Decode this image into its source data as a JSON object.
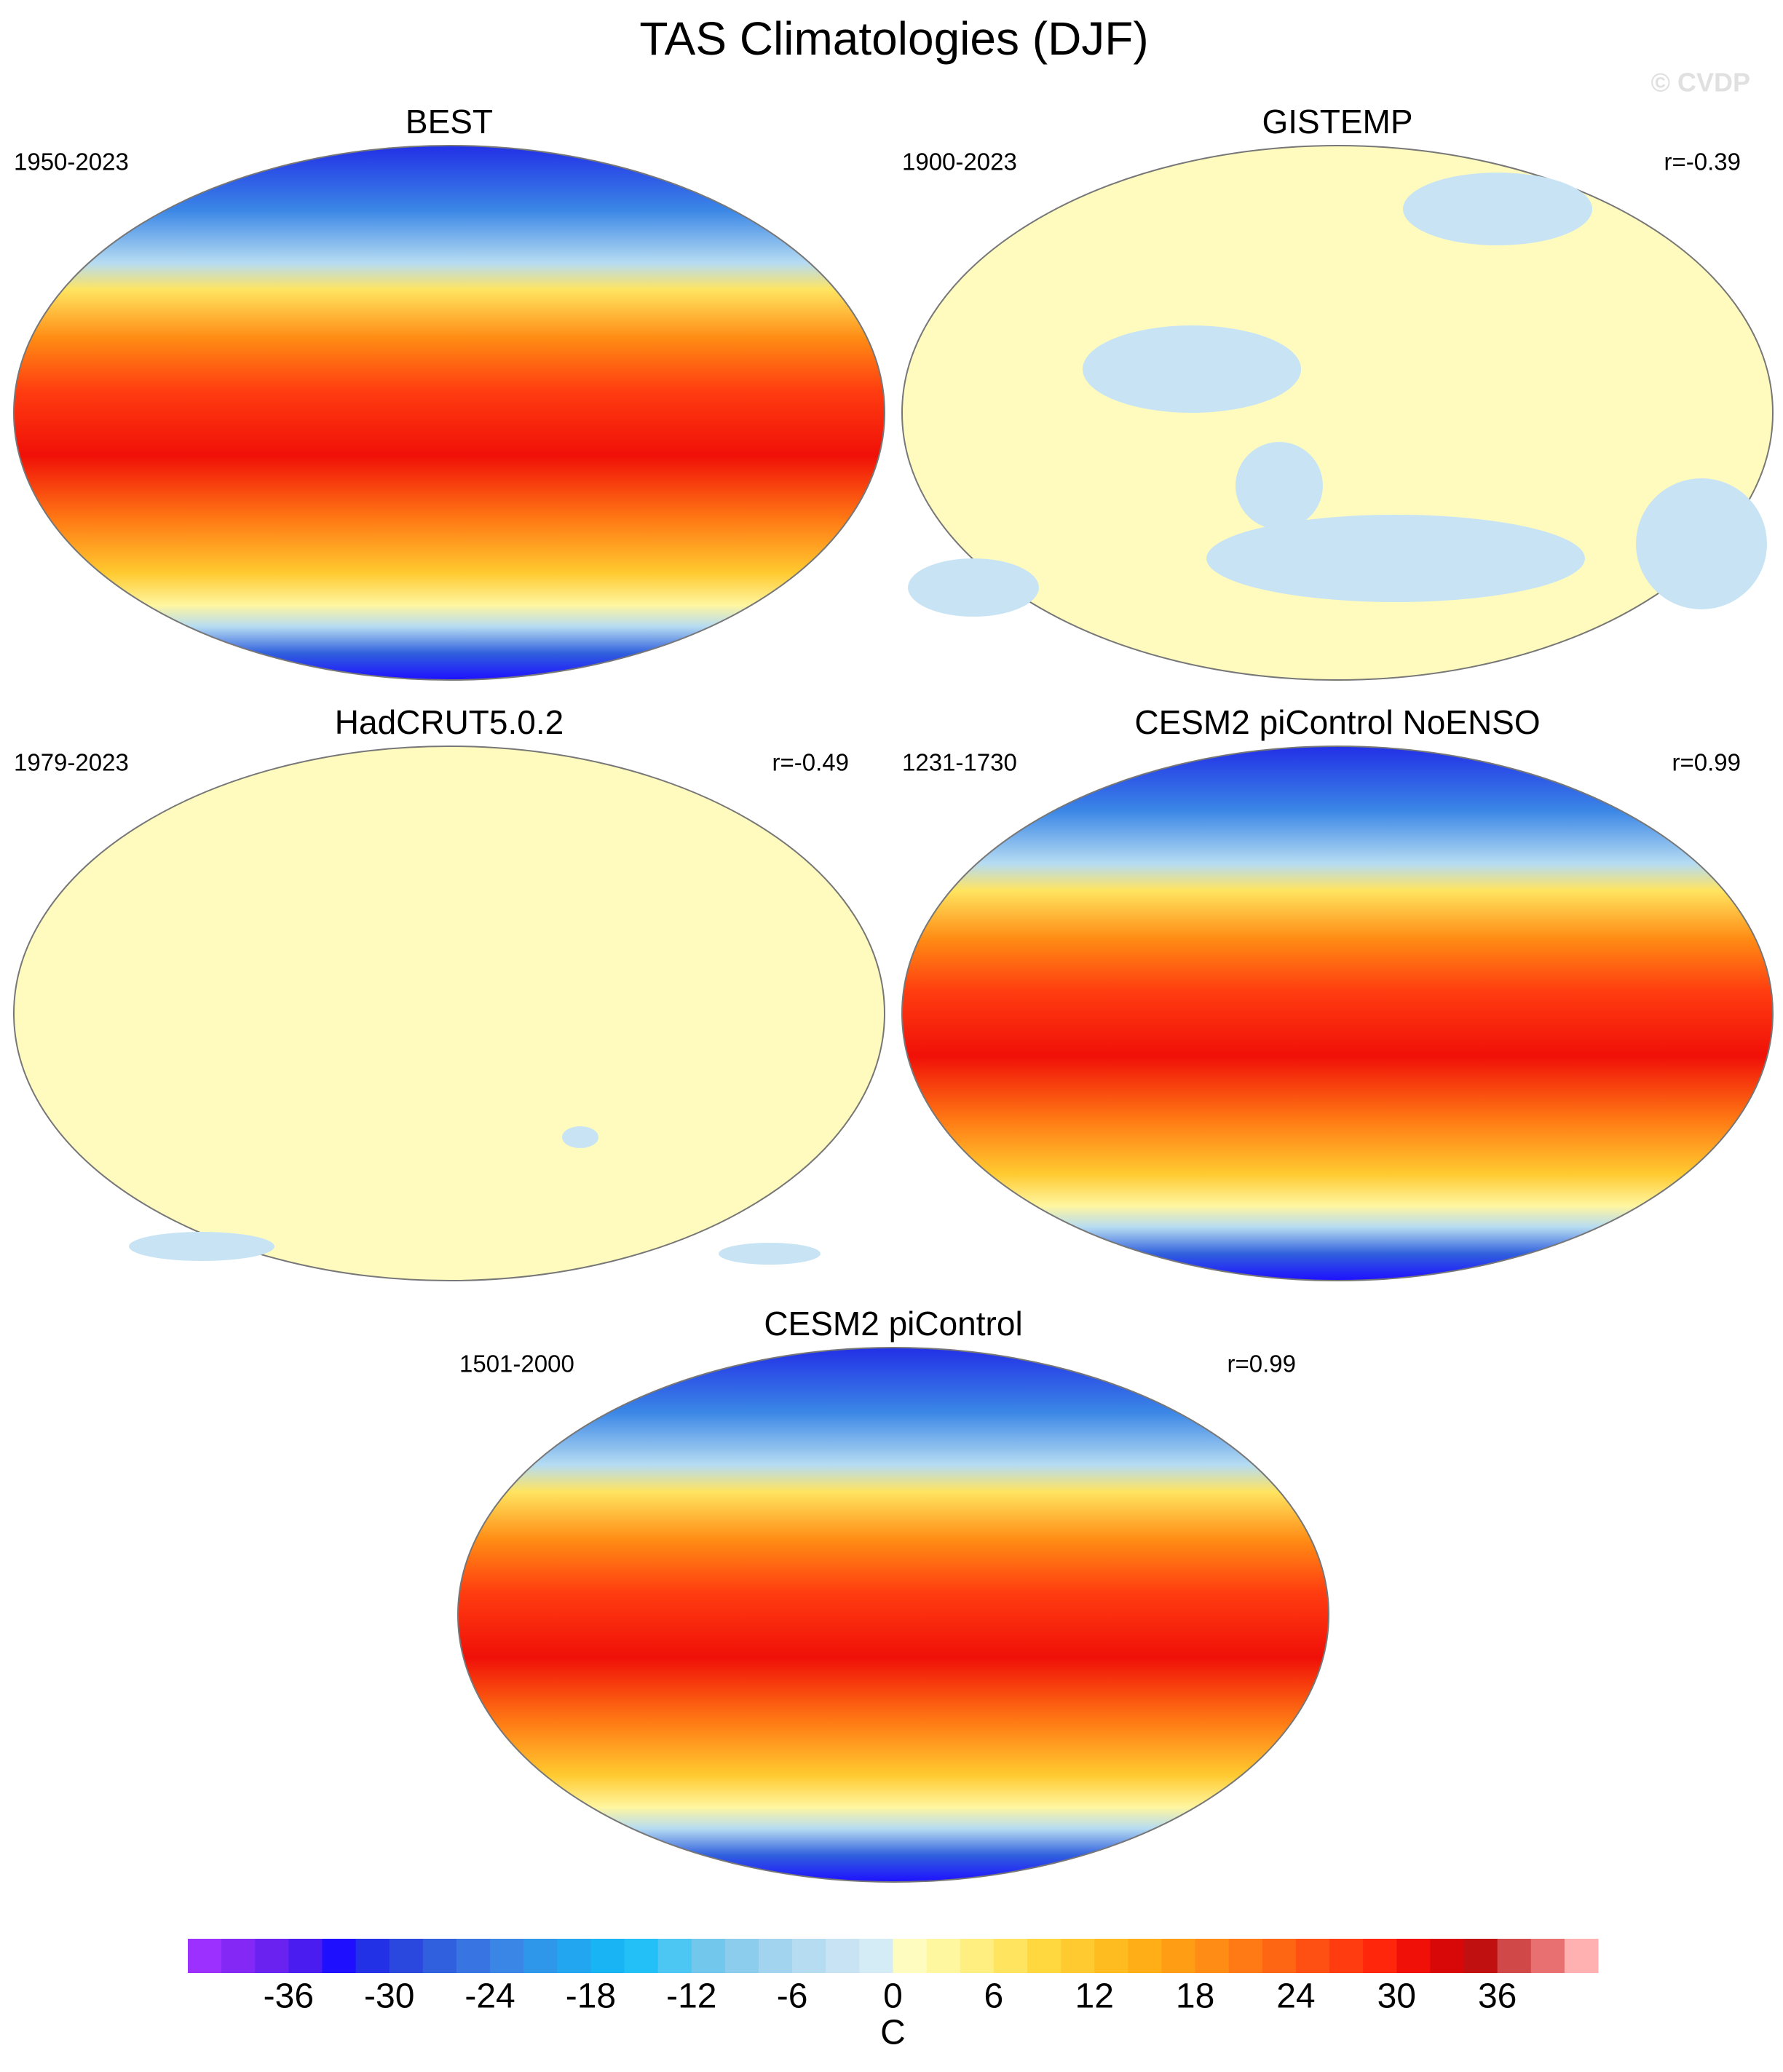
{
  "title": "TAS Climatologies (DJF)",
  "watermark": "© CVDP",
  "panels": [
    {
      "title": "BEST",
      "period": "1950-2023",
      "style": "full"
    },
    {
      "title": "GISTEMP",
      "period": "1900-2023",
      "r": "r=-0.39",
      "style": "pale"
    },
    {
      "title": "HadCRUT5.0.2",
      "period": "1979-2023",
      "r": "r=-0.49",
      "style": "pale"
    },
    {
      "title": "CESM2 piControl NoENSO",
      "period": "1231-1730",
      "r": "r=0.99",
      "style": "full"
    },
    {
      "title": "CESM2 piControl",
      "period": "1501-2000",
      "r": "r=0.99",
      "style": "full"
    }
  ],
  "colorbar": {
    "lim": [
      -42,
      42
    ],
    "ticks": [
      -36,
      -30,
      -24,
      -18,
      -12,
      -6,
      0,
      6,
      12,
      18,
      24,
      30,
      36
    ],
    "label": "C",
    "colors": [
      "#9b30ff",
      "#8428f5",
      "#6a22f0",
      "#4b1cf0",
      "#1e10ff",
      "#2230e6",
      "#2a48de",
      "#3060dd",
      "#3874e2",
      "#3a86e6",
      "#2e97ea",
      "#22a6ef",
      "#18b4f3",
      "#22c0f7",
      "#4cc6f2",
      "#72c8ec",
      "#8ccdee",
      "#a2d4f0",
      "#b6dcf2",
      "#c8e4f4",
      "#d4ecf6",
      "#fffcc0",
      "#fff6a0",
      "#ffee80",
      "#ffe460",
      "#ffd840",
      "#ffca30",
      "#ffbc20",
      "#ffae18",
      "#ff9e14",
      "#ff8c14",
      "#ff7a14",
      "#ff6614",
      "#ff5014",
      "#ff3c10",
      "#ff260c",
      "#f01008",
      "#d80808",
      "#c01010",
      "#d04848",
      "#e87070",
      "#ffb0b0"
    ]
  }
}
